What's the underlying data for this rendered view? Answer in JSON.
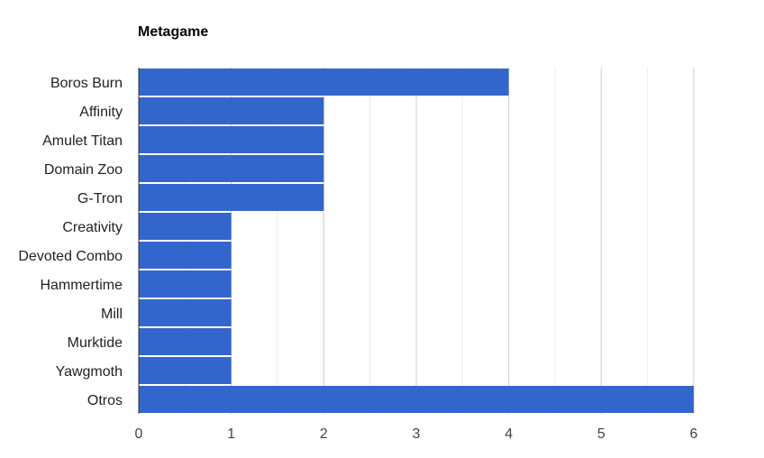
{
  "chart_data": {
    "type": "bar",
    "orientation": "horizontal",
    "title": "Metagame",
    "xlabel": "",
    "ylabel": "",
    "categories": [
      "Boros Burn",
      "Affinity",
      "Amulet Titan",
      "Domain Zoo",
      "G-Tron",
      "Creativity",
      "Devoted Combo",
      "Hammertime",
      "Mill",
      "Murktide",
      "Yawgmoth",
      "Otros"
    ],
    "values": [
      4,
      2,
      2,
      2,
      2,
      1,
      1,
      1,
      1,
      1,
      1,
      6
    ],
    "xlim": [
      0,
      6
    ],
    "xticks": [
      "0",
      "1",
      "2",
      "3",
      "4",
      "5",
      "6"
    ],
    "grid": true,
    "legend": "none",
    "bar_color": "#3366cc",
    "grid_color": "#cccccc",
    "minor_grid_color": "#ebebeb"
  }
}
